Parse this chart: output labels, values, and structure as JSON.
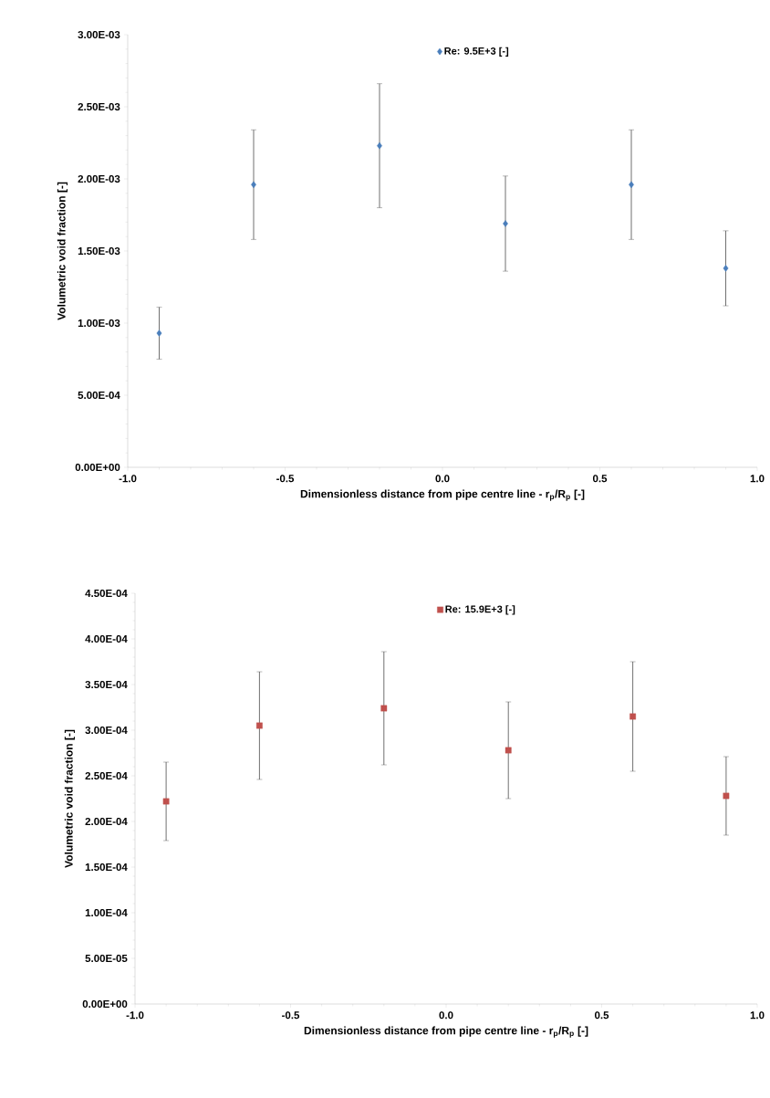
{
  "chart_data": [
    {
      "type": "scatter",
      "xlabel": "Dimensionless distance from pipe centre line  - r$_{p}$/R$_{p}$ [-]",
      "ylabel": "Volumetric  void fraction [-]",
      "x": [
        -0.9,
        -0.6,
        -0.2,
        0.2,
        0.6,
        0.9
      ],
      "series": [
        {
          "name": "Re: 9.5E+3 [-]",
          "color": "#4a7ebb",
          "values": [
            0.00093,
            0.00196,
            0.00223,
            0.00169,
            0.00196,
            0.00138
          ],
          "errors": [
            0.00018,
            0.00038,
            0.00043,
            0.00033,
            0.00038,
            0.00026
          ]
        }
      ],
      "xlim": [
        -1,
        1
      ],
      "ylim": [
        0,
        0.003
      ],
      "xticks": [
        {
          "value": -1,
          "label": "-1.0"
        },
        {
          "value": -0.5,
          "label": "-0.5"
        },
        {
          "value": 0,
          "label": "0.0"
        },
        {
          "value": 0.5,
          "label": "0.5"
        },
        {
          "value": 1,
          "label": "1.0"
        }
      ],
      "yticks": [
        {
          "value": 0,
          "label": "0.00E+00"
        },
        {
          "value": 0.0005,
          "label": "5.00E-04"
        },
        {
          "value": 0.001,
          "label": "1.00E-03"
        },
        {
          "value": 0.0015,
          "label": "1.50E-03"
        },
        {
          "value": 0.002,
          "label": "2.00E-03"
        },
        {
          "value": 0.0025,
          "label": "2.50E-03"
        },
        {
          "value": 0.003,
          "label": "3.00E-03"
        }
      ],
      "legend": "top",
      "marker": "diamond"
    },
    {
      "type": "scatter",
      "xlabel": "Dimensionless distance from pipe centre line  - r$_{p}$/R$_{p}$ [-]",
      "ylabel": "Volumetric  void fraction [-]",
      "x": [
        -0.9,
        -0.6,
        -0.2,
        0.2,
        0.6,
        0.9
      ],
      "series": [
        {
          "name": "Re: 15.9E+3 [-]",
          "color": "#c0504d",
          "values": [
            0.000222,
            0.000305,
            0.000324,
            0.000278,
            0.000315,
            0.000228
          ],
          "errors": [
            4.3e-05,
            5.9e-05,
            6.2e-05,
            5.3e-05,
            6e-05,
            4.3e-05
          ]
        }
      ],
      "xlim": [
        -1,
        1
      ],
      "ylim": [
        0,
        0.00045
      ],
      "xticks": [
        {
          "value": -1,
          "label": "-1.0"
        },
        {
          "value": -0.5,
          "label": "-0.5"
        },
        {
          "value": 0,
          "label": "0.0"
        },
        {
          "value": 0.5,
          "label": "0.5"
        },
        {
          "value": 1,
          "label": "1.0"
        }
      ],
      "yticks": [
        {
          "value": 0,
          "label": "0.00E+00"
        },
        {
          "value": 5e-05,
          "label": "5.00E-05"
        },
        {
          "value": 0.0001,
          "label": "1.00E-04"
        },
        {
          "value": 0.00015,
          "label": "1.50E-04"
        },
        {
          "value": 0.0002,
          "label": "2.00E-04"
        },
        {
          "value": 0.00025,
          "label": "2.50E-04"
        },
        {
          "value": 0.0003,
          "label": "3.00E-04"
        },
        {
          "value": 0.00035,
          "label": "3.50E-04"
        },
        {
          "value": 0.0004,
          "label": "4.00E-04"
        },
        {
          "value": 0.00045,
          "label": "4.50E-04"
        }
      ],
      "legend": "top",
      "marker": "square"
    }
  ]
}
